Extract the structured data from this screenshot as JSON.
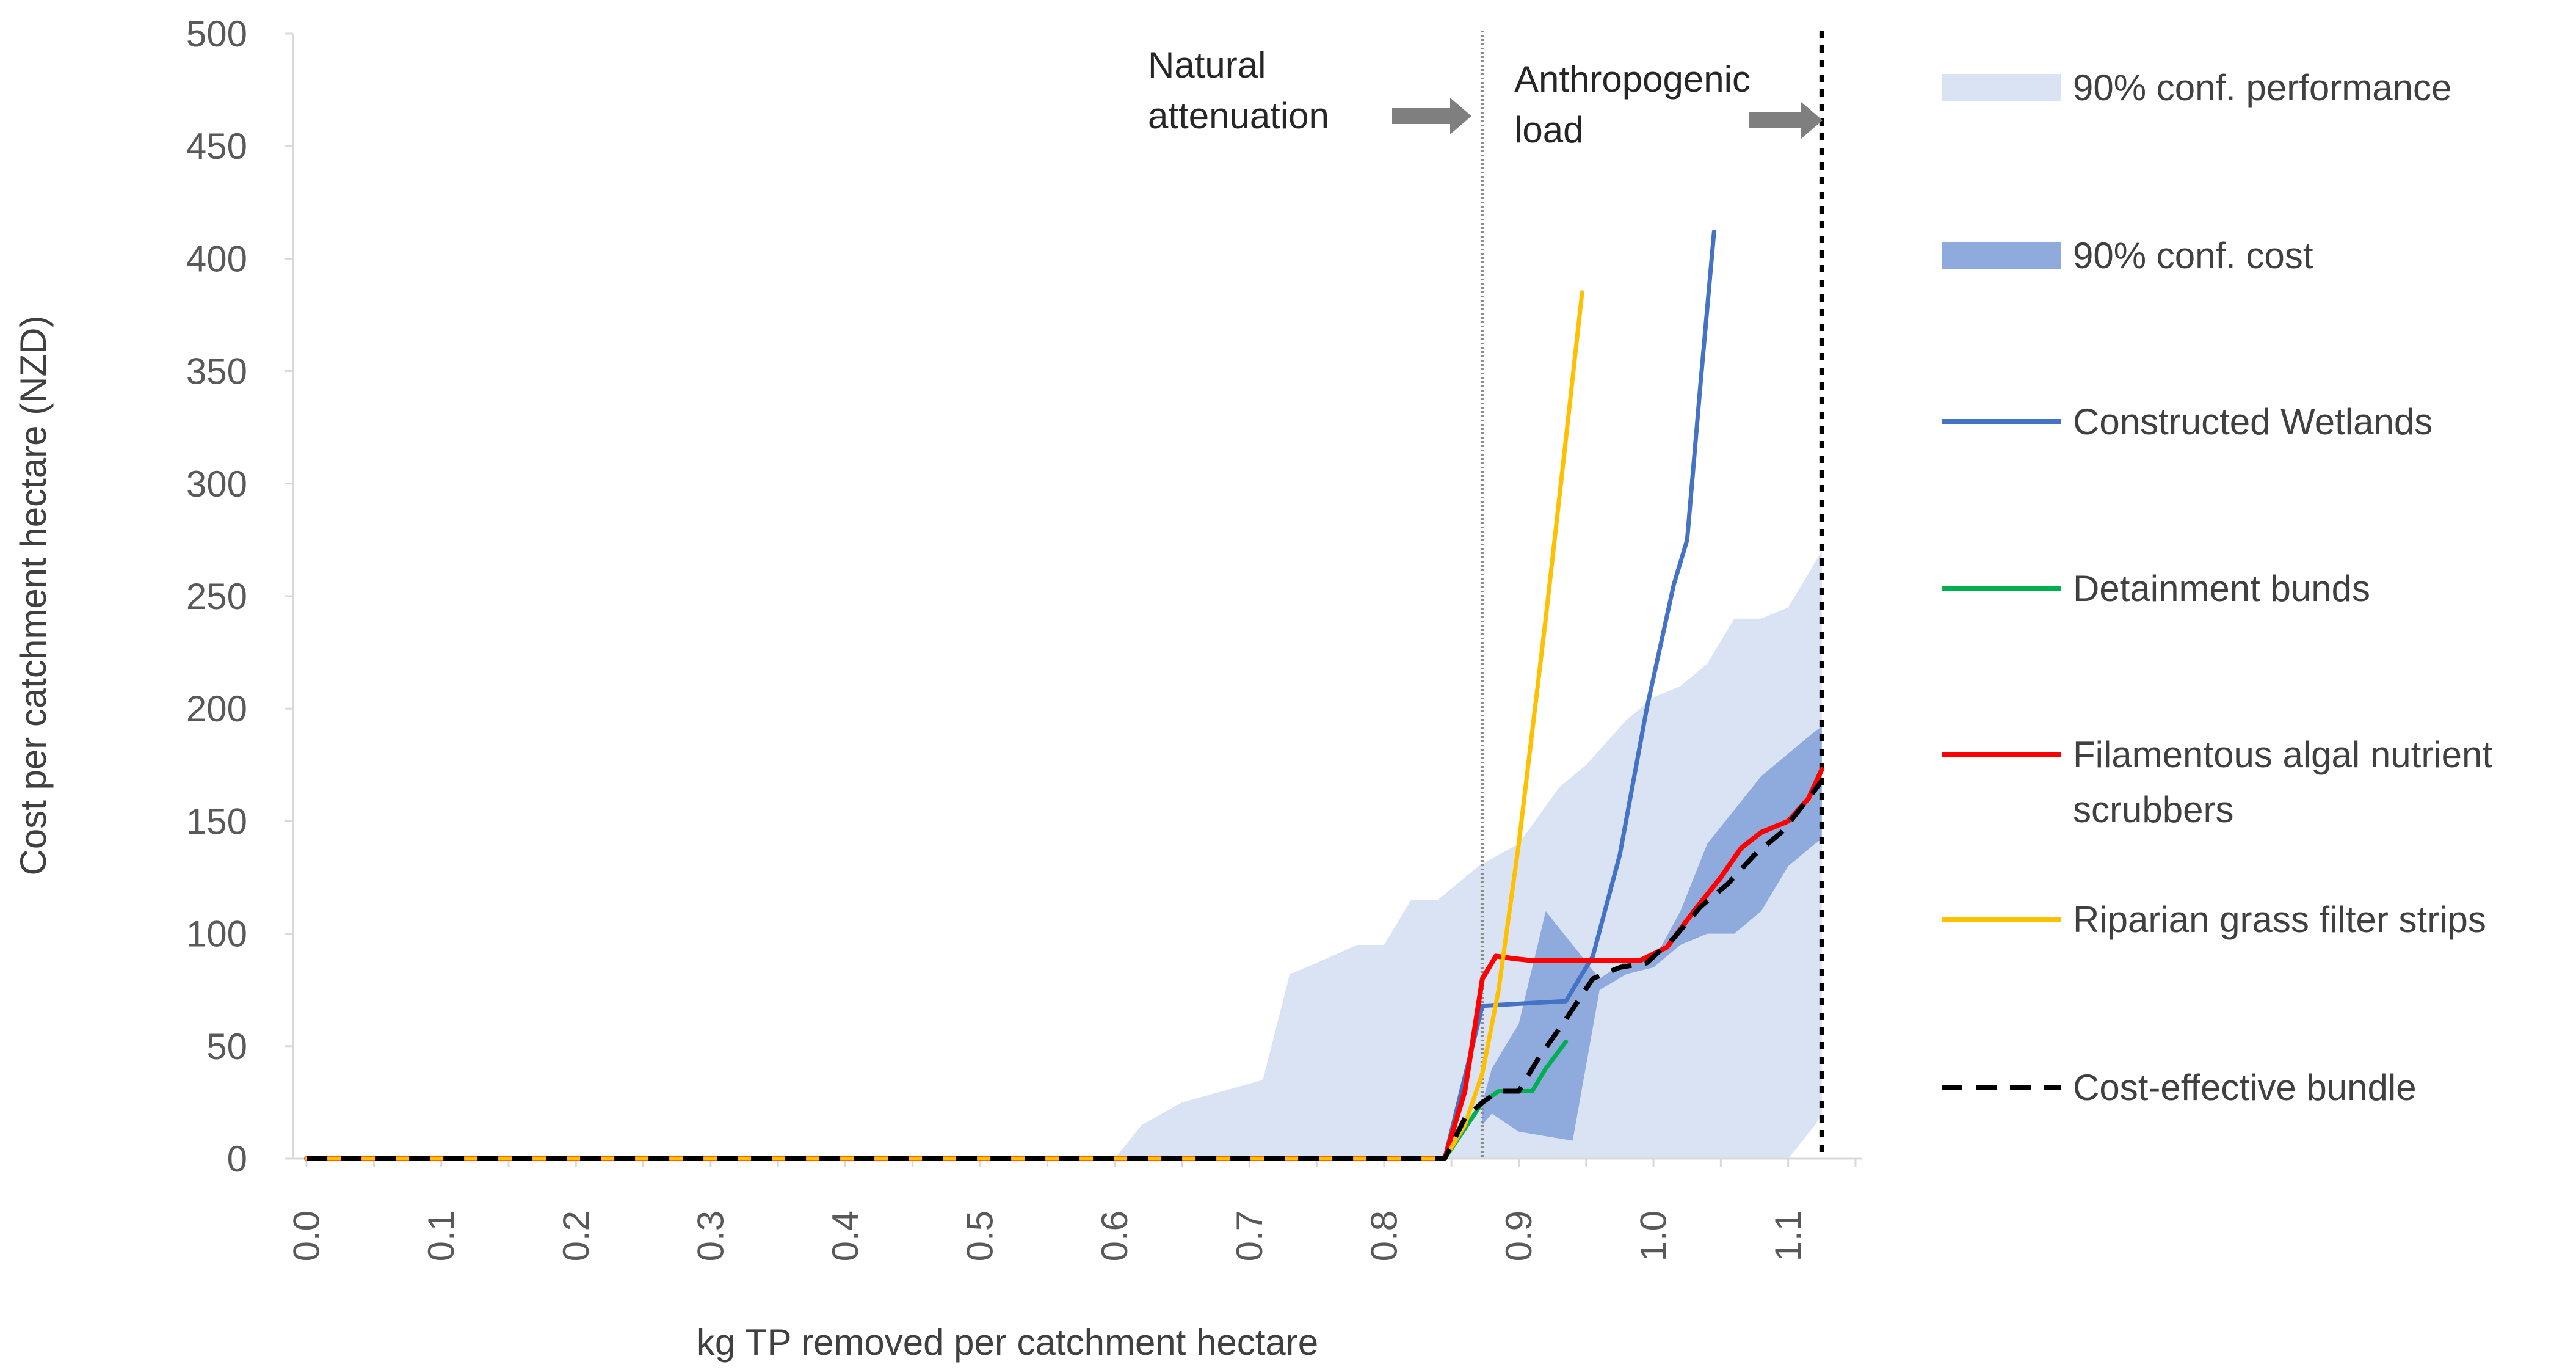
{
  "chart_data": {
    "type": "line",
    "title": "",
    "xlabel": "kg TP removed per catchment hectare",
    "ylabel": "Cost per catchment hectare (NZD)",
    "xlim": [
      -0.01,
      1.155
    ],
    "ylim": [
      0,
      500
    ],
    "x_ticks": [
      "0.0",
      "0.1",
      "0.2",
      "0.3",
      "0.4",
      "0.5",
      "0.6",
      "0.7",
      "0.8",
      "0.9",
      "1.0",
      "1.1"
    ],
    "y_ticks": [
      "0",
      "50",
      "100",
      "150",
      "200",
      "250",
      "300",
      "350",
      "400",
      "450",
      "500"
    ],
    "grid": false,
    "legend_position": "right",
    "vlines": [
      {
        "name": "natural-attenuation",
        "x": 0.873,
        "style": "dotted-grey"
      },
      {
        "name": "anthropogenic-load",
        "x": 1.125,
        "style": "dotted-black"
      }
    ],
    "annotations": [
      {
        "lines": [
          "Natural",
          "attenuation"
        ],
        "x": 0.84
      },
      {
        "lines": [
          "Anthropogenic",
          "load"
        ],
        "x": 1.12
      }
    ],
    "bands": [
      {
        "name": "90% conf. performance",
        "color": "#dae3f3",
        "x": [
          0.6,
          0.62,
          0.65,
          0.68,
          0.71,
          0.73,
          0.75,
          0.78,
          0.8,
          0.82,
          0.84,
          0.87,
          0.9,
          0.93,
          0.95,
          0.98,
          1.0,
          1.02,
          1.04,
          1.06,
          1.08,
          1.1,
          1.12,
          1.125
        ],
        "upper": [
          0,
          15,
          25,
          30,
          35,
          82,
          87,
          95,
          95,
          115,
          115,
          130,
          140,
          165,
          175,
          195,
          205,
          210,
          220,
          240,
          240,
          245,
          265,
          270
        ],
        "lower": [
          0,
          0,
          0,
          0,
          0,
          0,
          0,
          0,
          0,
          0,
          0,
          0,
          0,
          0,
          0,
          0,
          0,
          0,
          0,
          0,
          0,
          0,
          15,
          20
        ]
      },
      {
        "name": "90% conf. cost",
        "color": "#8faadc",
        "x": [
          0.873,
          0.88,
          0.9,
          0.92,
          0.94,
          0.96,
          0.98,
          1.0,
          1.02,
          1.04,
          1.06,
          1.08,
          1.1,
          1.12,
          1.125
        ],
        "upper": [
          25,
          40,
          60,
          110,
          95,
          80,
          88,
          88,
          110,
          140,
          155,
          170,
          180,
          190,
          192
        ],
        "lower": [
          15,
          20,
          12,
          10,
          8,
          75,
          82,
          85,
          95,
          100,
          100,
          110,
          130,
          140,
          142
        ]
      }
    ],
    "series": [
      {
        "name": "Constructed Wetlands",
        "color": "#4472c4",
        "dash": "",
        "width": 7,
        "x": [
          0,
          0.845,
          0.873,
          0.875,
          0.935,
          0.955,
          0.975,
          0.995,
          1.015,
          1.025,
          1.035,
          1.045
        ],
        "y": [
          0,
          0,
          68,
          68,
          70,
          90,
          135,
          200,
          255,
          275,
          345,
          412
        ]
      },
      {
        "name": "Detainment bunds",
        "color": "#00b050",
        "dash": "",
        "width": 7,
        "x": [
          0,
          0.845,
          0.873,
          0.885,
          0.895,
          0.91,
          0.92,
          0.935
        ],
        "y": [
          0,
          0,
          25,
          30,
          30,
          30,
          40,
          52
        ]
      },
      {
        "name": "Filamentous algal nutrient scrubbers",
        "color": "#ff0000",
        "dash": "",
        "width": 8,
        "x": [
          0,
          0.845,
          0.86,
          0.873,
          0.883,
          0.895,
          0.91,
          0.93,
          0.95,
          0.97,
          0.99,
          1.01,
          1.03,
          1.05,
          1.065,
          1.08,
          1.1,
          1.115,
          1.125
        ],
        "y": [
          0,
          0,
          30,
          80,
          90,
          89,
          88,
          88,
          88,
          88,
          88,
          94,
          110,
          125,
          138,
          145,
          150,
          160,
          173
        ]
      },
      {
        "name": "Riparian grass filter strips",
        "color": "#ffc000",
        "dash": "",
        "width": 7,
        "x": [
          0,
          0.845,
          0.86,
          0.873,
          0.885,
          0.9,
          0.92,
          0.935,
          0.947
        ],
        "y": [
          0,
          0,
          15,
          38,
          75,
          140,
          240,
          320,
          385
        ]
      },
      {
        "name": "Cost-effective bundle",
        "color": "#000000",
        "dash": "34,22",
        "width": 8,
        "x": [
          0,
          0.845,
          0.86,
          0.873,
          0.885,
          0.9,
          0.915,
          0.935,
          0.955,
          0.975,
          0.995,
          1.015,
          1.035,
          1.055,
          1.075,
          1.095,
          1.115,
          1.125
        ],
        "y": [
          0,
          0,
          18,
          25,
          30,
          30,
          45,
          62,
          80,
          85,
          87,
          98,
          112,
          122,
          135,
          145,
          160,
          168
        ]
      }
    ],
    "legend": [
      {
        "label": "90% conf. performance",
        "kind": "band",
        "color": "#dae3f3"
      },
      {
        "label": "90% conf. cost",
        "kind": "band",
        "color": "#8faadc"
      },
      {
        "label": "Constructed Wetlands",
        "kind": "line",
        "color": "#4472c4"
      },
      {
        "label": "Detainment bunds",
        "kind": "line",
        "color": "#00b050"
      },
      {
        "label": [
          "Filamentous algal nutrient",
          "scrubbers"
        ],
        "kind": "line",
        "color": "#ff0000"
      },
      {
        "label": "Riparian grass filter strips",
        "kind": "line",
        "color": "#ffc000"
      },
      {
        "label": "Cost-effective bundle",
        "kind": "dash",
        "color": "#000000"
      }
    ]
  }
}
